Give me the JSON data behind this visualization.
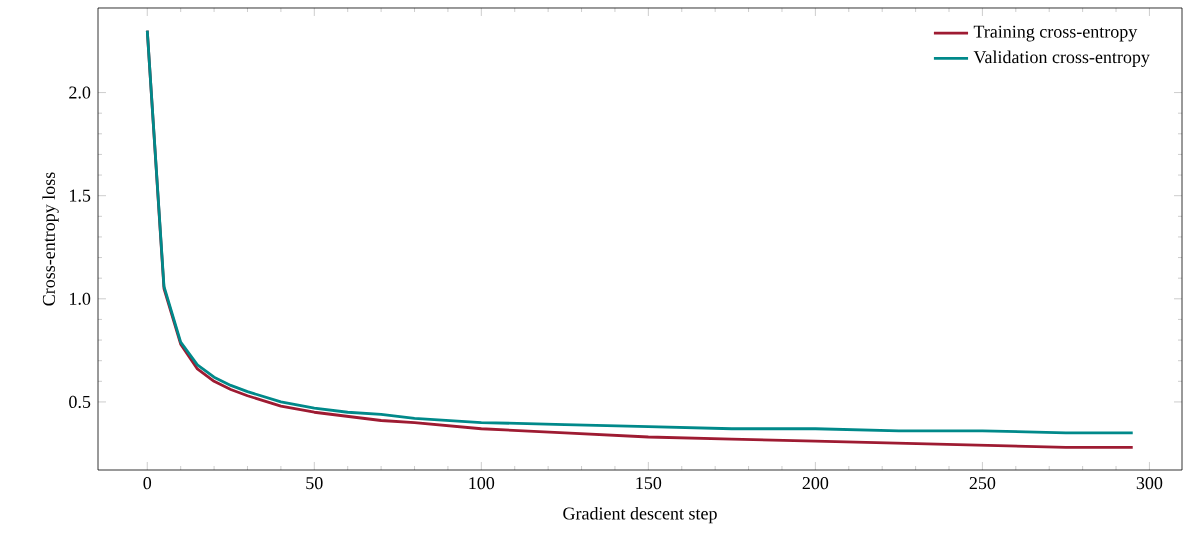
{
  "chart_data": {
    "type": "line",
    "xlabel": "Gradient descent step",
    "ylabel": "Cross-entropy loss",
    "x": [
      0,
      5,
      10,
      15,
      20,
      25,
      30,
      40,
      50,
      60,
      70,
      80,
      100,
      125,
      150,
      175,
      200,
      225,
      250,
      275,
      295
    ],
    "series": [
      {
        "name": "Training cross-entropy",
        "color": "#9e1b32",
        "values": [
          2.3,
          1.05,
          0.78,
          0.66,
          0.6,
          0.56,
          0.53,
          0.48,
          0.45,
          0.43,
          0.41,
          0.4,
          0.37,
          0.35,
          0.33,
          0.32,
          0.31,
          0.3,
          0.29,
          0.28,
          0.28
        ]
      },
      {
        "name": "Validation cross-entropy",
        "color": "#00898a",
        "values": [
          2.3,
          1.06,
          0.79,
          0.68,
          0.62,
          0.58,
          0.55,
          0.5,
          0.47,
          0.45,
          0.44,
          0.42,
          0.4,
          0.39,
          0.38,
          0.37,
          0.37,
          0.36,
          0.36,
          0.35,
          0.35
        ]
      }
    ],
    "xlim": [
      -14.75,
      309.75
    ],
    "ylim": [
      0.17,
      2.41
    ],
    "xticks": [
      0,
      50,
      100,
      150,
      200,
      250,
      300
    ],
    "yticks": [
      0.5,
      {
        "value": 1.0,
        "label": "1.0"
      },
      1.5,
      {
        "value": 2.0,
        "label": "2.0"
      }
    ],
    "legend": "top right",
    "grid": false,
    "marker": "none",
    "line_style": "solid"
  }
}
